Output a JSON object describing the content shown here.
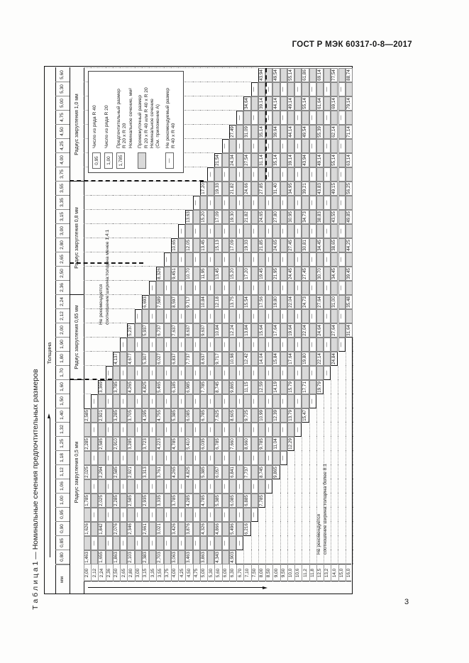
{
  "page": {
    "standard_header": "ГОСТ Р МЭК 60317-0-8—2017",
    "page_number": "3",
    "table_title": "Т а б л и ц а   1 — Номинальные сечения предпочтительных размеров"
  },
  "axes": {
    "thickness_label": "Толщина",
    "unit_label": "мм"
  },
  "thicknesses": [
    "0,80",
    "0,85",
    "0,90",
    "0,95",
    "1,00",
    "1,06",
    "1,12",
    "1,18",
    "1,25",
    "1,32",
    "1,40",
    "1,50",
    "1,60",
    "1,70",
    "1,80",
    "1,90",
    "2,00",
    "2,12",
    "2,24",
    "2,36",
    "2,50",
    "2,65",
    "2,80",
    "3,00",
    "3,15",
    "3,35",
    "3,55",
    "3,75",
    "4,00",
    "4,25",
    "4,50",
    "4,75",
    "5,00",
    "5,30",
    "5,60"
  ],
  "radius_groups": [
    {
      "label": "Радиус закругления 0,5 мм",
      "cols": 13
    },
    {
      "label": "Радиус закругления 0,65 мм",
      "cols": 6
    },
    {
      "label": "Радиус закругления 0,8 мм",
      "cols": 8
    },
    {
      "label": "Радиус закругления 1,0 мм",
      "cols": 8
    }
  ],
  "legend": [
    {
      "box": "0,95",
      "fill": "#ffffff",
      "text": [
        "Число из ряда R 40"
      ]
    },
    {
      "box": "1,00",
      "fill": "#ffffff",
      "text": [
        "Число из ряда R 20"
      ]
    },
    {
      "box": "1,785",
      "fill": "#ffffff",
      "text": [
        "Предпочтительный размер",
        "R 20 x R 20",
        "Номинальное сечение, мм²"
      ]
    },
    {
      "box": "",
      "fill": "#d9d9d9",
      "text": [
        "Промежуточный размер",
        "R 20 x R 40 или R 40 x R 20",
        "Номинальное сечение",
        "(См. приложение А)"
      ]
    },
    {
      "box": "—",
      "fill": "#ffffff",
      "text": [
        "Не рекомендуемый размер",
        "R 40 x R 40"
      ]
    }
  ],
  "zone_notes": {
    "upper": [
      "Не рекомендуется",
      "соотношение ширина:толщина менее 1,4:1"
    ],
    "lower": [
      "Не рекомендуется",
      "соотношение ширина:толщина более 8:1"
    ]
  },
  "colors": {
    "intermediate_fill": "#d9d9d9",
    "border": "#111111",
    "thin_border": "#8b8b8b"
  },
  "rows": [
    {
      "w": "2,00",
      "start": 0,
      "cells": [
        "1,463",
        "G",
        "1,626",
        "G",
        "1,785",
        "G",
        "2,025",
        "G",
        "2,285",
        "G",
        "2,585"
      ]
    },
    {
      "w": "2,12",
      "start": 0,
      "cells": [
        "G",
        "—",
        "G",
        "—",
        "G",
        "—",
        "G",
        "—",
        "G",
        "—",
        "G",
        "—"
      ]
    },
    {
      "w": "2,24",
      "start": 0,
      "cells": [
        "1,655",
        "G",
        "1,842",
        "G",
        "2,025",
        "G",
        "2,294",
        "G",
        "2,585",
        "G",
        "2,921",
        "G",
        "3,369"
      ]
    },
    {
      "w": "2,36",
      "start": 0,
      "cells": [
        "G",
        "—",
        "G",
        "—",
        "G",
        "—",
        "G",
        "—",
        "G",
        "—",
        "G",
        "—",
        "G",
        "—"
      ]
    },
    {
      "w": "2,50",
      "start": 0,
      "cells": [
        "1,863",
        "G",
        "2,076",
        "G",
        "2,285",
        "G",
        "2,585",
        "G",
        "2,910",
        "G",
        "3,285",
        "G",
        "3,785",
        "G",
        "4,137"
      ]
    },
    {
      "w": "2,65",
      "start": 0,
      "cells": [
        "G",
        "—",
        "G",
        "—",
        "G",
        "—",
        "G",
        "—",
        "G",
        "—",
        "G",
        "—",
        "G",
        "—",
        "G",
        "—"
      ]
    },
    {
      "w": "2,80",
      "start": 0,
      "cells": [
        "2,103",
        "G",
        "2,346",
        "G",
        "2,585",
        "G",
        "2,921",
        "G",
        "3,285",
        "G",
        "3,705",
        "G",
        "4,265",
        "G",
        "4,677",
        "G",
        "5,237"
      ]
    },
    {
      "w": "3,00",
      "start": 0,
      "cells": [
        "G",
        "—",
        "G",
        "—",
        "G",
        "—",
        "G",
        "—",
        "G",
        "—",
        "G",
        "—",
        "G",
        "—",
        "G",
        "—",
        "G",
        "—"
      ]
    },
    {
      "w": "3,15",
      "start": 0,
      "cells": [
        "2,383",
        "G",
        "2,661",
        "G",
        "2,935",
        "G",
        "3,313",
        "G",
        "3,723",
        "G",
        "4,195",
        "G",
        "4,825",
        "G",
        "5,307",
        "G",
        "5,937",
        "G",
        "6,693"
      ]
    },
    {
      "w": "3,35",
      "start": 0,
      "cells": [
        "G",
        "—",
        "G",
        "—",
        "G",
        "—",
        "G",
        "—",
        "G",
        "—",
        "G",
        "—",
        "G",
        "—",
        "G",
        "—",
        "G",
        "—",
        "G",
        "—"
      ]
    },
    {
      "w": "3,55",
      "start": 0,
      "cells": [
        "2,703",
        "G",
        "3,021",
        "G",
        "3,335",
        "G",
        "3,761",
        "G",
        "4,223",
        "G",
        "4,755",
        "G",
        "5,465",
        "G",
        "6,027",
        "G",
        "6,737",
        "G",
        "7,589",
        "G",
        "8,326"
      ]
    },
    {
      "w": "3,75",
      "start": 0,
      "cells": [
        "G",
        "—",
        "G",
        "—",
        "G",
        "—",
        "G",
        "—",
        "G",
        "—",
        "G",
        "—",
        "G",
        "—",
        "G",
        "—",
        "G",
        "—",
        "G",
        "—",
        "G",
        "—"
      ]
    },
    {
      "w": "4,00",
      "start": 0,
      "cells": [
        "3,063",
        "G",
        "3,426",
        "G",
        "3,785",
        "G",
        "4,265",
        "G",
        "4,785",
        "G",
        "5,385",
        "G",
        "6,185",
        "G",
        "6,837",
        "G",
        "7,637",
        "G",
        "8,597",
        "G",
        "9,451",
        "G",
        "10,65"
      ]
    },
    {
      "w": "4,25",
      "start": 0,
      "cells": [
        "G",
        "—",
        "G",
        "—",
        "G",
        "—",
        "G",
        "—",
        "G",
        "—",
        "G",
        "—",
        "G",
        "—",
        "G",
        "—",
        "G",
        "—",
        "G",
        "—",
        "G",
        "—",
        "G",
        "—"
      ]
    },
    {
      "w": "4,50",
      "start": 0,
      "cells": [
        "3,463",
        "G",
        "3,876",
        "G",
        "4,285",
        "G",
        "4,825",
        "G",
        "5,410",
        "G",
        "6,085",
        "G",
        "6,985",
        "G",
        "7,737",
        "G",
        "8,637",
        "G",
        "9,717",
        "G",
        "10,70",
        "G",
        "12,05",
        "G",
        "13,63"
      ]
    },
    {
      "w": "4,75",
      "start": 0,
      "cells": [
        "G",
        "—",
        "G",
        "—",
        "G",
        "—",
        "G",
        "—",
        "G",
        "—",
        "G",
        "—",
        "G",
        "—",
        "G",
        "—",
        "G",
        "—",
        "G",
        "—",
        "G",
        "—",
        "G",
        "—",
        "G",
        "—"
      ]
    },
    {
      "w": "5,00",
      "start": 0,
      "cells": [
        "3,863",
        "G",
        "4,326",
        "G",
        "4,785",
        "G",
        "5,385",
        "G",
        "6,035",
        "G",
        "6,785",
        "G",
        "7,785",
        "G",
        "8,637",
        "G",
        "9,637",
        "G",
        "10,84",
        "G",
        "11,95",
        "G",
        "13,45",
        "G",
        "15,20",
        "G",
        "17,20"
      ]
    },
    {
      "w": "5,30",
      "start": 0,
      "cells": [
        "G",
        "—",
        "G",
        "—",
        "G",
        "—",
        "G",
        "—",
        "G",
        "—",
        "G",
        "—",
        "G",
        "—",
        "G",
        "—",
        "G",
        "—",
        "G",
        "—",
        "G",
        "—",
        "G",
        "—",
        "G",
        "—",
        "G",
        "—"
      ]
    },
    {
      "w": "5,60",
      "start": 0,
      "cells": [
        "4,343",
        "G",
        "4,866",
        "G",
        "5,385",
        "G",
        "6,057",
        "G",
        "6,785",
        "G",
        "7,625",
        "G",
        "8,745",
        "G",
        "9,717",
        "G",
        "10,84",
        "G",
        "12,18",
        "G",
        "13,45",
        "G",
        "15,13",
        "G",
        "17,09",
        "G",
        "19,33",
        "G",
        "21,54"
      ]
    },
    {
      "w": "6,00",
      "start": 0,
      "cells": [
        "G",
        "—",
        "G",
        "—",
        "G",
        "—",
        "G",
        "—",
        "G",
        "—",
        "G",
        "—",
        "G",
        "—",
        "G",
        "—",
        "G",
        "—",
        "G",
        "—",
        "G",
        "—",
        "G",
        "—",
        "G",
        "—",
        "G",
        "—",
        "G",
        "—"
      ]
    },
    {
      "w": "6,30",
      "start": 0,
      "cells": [
        "4,903",
        "G",
        "5,496",
        "G",
        "6,085",
        "G",
        "6,841",
        "G",
        "7,660",
        "G",
        "8,605",
        "G",
        "9,865",
        "G",
        "10,98",
        "G",
        "12,24",
        "G",
        "13,75",
        "G",
        "15,20",
        "G",
        "17,09",
        "G",
        "19,30",
        "G",
        "21,82",
        "G",
        "24,34",
        "G",
        "27,49"
      ]
    },
    {
      "w": "6,70",
      "start": 1,
      "cells": [
        "—",
        "G",
        "—",
        "G",
        "—",
        "G",
        "—",
        "G",
        "—",
        "G",
        "—",
        "G",
        "—",
        "G",
        "—",
        "G",
        "—",
        "G",
        "—",
        "G",
        "—",
        "G",
        "—",
        "G",
        "—",
        "G",
        "—",
        "G",
        "—",
        "G",
        "—"
      ]
    },
    {
      "w": "7,10",
      "start": 2,
      "cells": [
        "6,216",
        "G",
        "6,885",
        "G",
        "7,737",
        "G",
        "8,660",
        "G",
        "9,725",
        "G",
        "11,15",
        "G",
        "12,42",
        "G",
        "13,84",
        "G",
        "15,54",
        "G",
        "17,20",
        "G",
        "19,33",
        "G",
        "21,82",
        "G",
        "24,66",
        "G",
        "27,54",
        "G",
        "31,09",
        "G",
        "34,64"
      ]
    },
    {
      "w": "7,50",
      "start": 3,
      "cells": [
        "—",
        "G",
        "—",
        "G",
        "—",
        "G",
        "—",
        "G",
        "—",
        "G",
        "—",
        "G",
        "—",
        "G",
        "—",
        "G",
        "—",
        "G",
        "—",
        "G",
        "—",
        "G",
        "—",
        "G",
        "—",
        "G",
        "—",
        "G",
        "—",
        "G",
        "—"
      ]
    },
    {
      "w": "8,00",
      "start": 4,
      "cells": [
        "7,785",
        "G",
        "8,745",
        "G",
        "9,785",
        "G",
        "10,99",
        "G",
        "12,59",
        "G",
        "14,04",
        "G",
        "15,64",
        "G",
        "17,56",
        "G",
        "19,45",
        "G",
        "21,85",
        "G",
        "24,65",
        "G",
        "27,85",
        "G",
        "31,14",
        "G",
        "35,14",
        "G",
        "39,14",
        "G",
        "43,94"
      ]
    },
    {
      "w": "8,50",
      "start": 5,
      "cells": [
        "—",
        "G",
        "—",
        "G",
        "—",
        "G",
        "—",
        "G",
        "—",
        "G",
        "—",
        "G",
        "—",
        "G",
        "—",
        "G",
        "—",
        "G",
        "—",
        "G",
        "—",
        "G",
        "—",
        "G",
        "—",
        "G",
        "—",
        "G",
        "—",
        "G"
      ]
    },
    {
      "w": "9,00",
      "start": 6,
      "cells": [
        "9,865",
        "G",
        "11,04",
        "G",
        "12,39",
        "G",
        "14,19",
        "G",
        "15,84",
        "G",
        "17,64",
        "G",
        "19,80",
        "G",
        "21,95",
        "G",
        "24,65",
        "G",
        "27,80",
        "G",
        "31,40",
        "G",
        "35,14",
        "G",
        "39,64",
        "G",
        "44,14",
        "G",
        "49,54"
      ]
    },
    {
      "w": "9,50",
      "start": 7,
      "cells": [
        "—",
        "G",
        "—",
        "G",
        "—",
        "G",
        "—",
        "G",
        "—",
        "G",
        "—",
        "G",
        "—",
        "G",
        "—",
        "G",
        "—",
        "G",
        "—",
        "G",
        "—",
        "G",
        "—",
        "G",
        "—",
        "G",
        "—",
        "G"
      ]
    },
    {
      "w": "10,0",
      "start": 8,
      "cells": [
        "12,29",
        "G",
        "13,79",
        "G",
        "15,79",
        "G",
        "17,64",
        "G",
        "19,64",
        "G",
        "22,04",
        "G",
        "24,45",
        "G",
        "27,45",
        "G",
        "30,95",
        "G",
        "34,95",
        "G",
        "39,14",
        "G",
        "44,14",
        "G",
        "49,14",
        "G",
        "55,14"
      ]
    },
    {
      "w": "10,6",
      "start": 9,
      "cells": [
        "—",
        "G",
        "—",
        "G",
        "—",
        "G",
        "—",
        "G",
        "—",
        "G",
        "—",
        "G",
        "—",
        "G",
        "—",
        "G",
        "—",
        "G",
        "—",
        "G",
        "—",
        "G",
        "—",
        "G",
        "—",
        "G"
      ]
    },
    {
      "w": "11,2",
      "start": 10,
      "cells": [
        "15,47",
        "G",
        "17,71",
        "G",
        "19,80",
        "G",
        "22,04",
        "G",
        "24,73",
        "G",
        "27,45",
        "G",
        "30,81",
        "G",
        "34,73",
        "G",
        "39,21",
        "G",
        "43,94",
        "G",
        "49,54",
        "G",
        "55,14",
        "G",
        "61,86"
      ]
    },
    {
      "w": "11,8",
      "start": 11,
      "cells": [
        "—",
        "G",
        "—",
        "G",
        "—",
        "G",
        "—",
        "G",
        "—",
        "G",
        "—",
        "G",
        "—",
        "G",
        "—",
        "G",
        "—",
        "G",
        "—",
        "G",
        "—",
        "G",
        "—",
        "G"
      ]
    },
    {
      "w": "12,5",
      "start": 12,
      "cells": [
        "19,79",
        "G",
        "22,14",
        "G",
        "24,64",
        "G",
        "27,64",
        "G",
        "30,70",
        "G",
        "34,45",
        "G",
        "38,83",
        "G",
        "43,83",
        "G",
        "49,14",
        "G",
        "55,39",
        "G",
        "61,64",
        "G",
        "69,14"
      ]
    },
    {
      "w": "13,2",
      "start": 13,
      "cells": [
        "—",
        "G",
        "—",
        "G",
        "—",
        "G",
        "—",
        "G",
        "—",
        "G",
        "—",
        "G",
        "—",
        "G",
        "—",
        "G",
        "—",
        "G",
        "—",
        "G",
        "—",
        "G"
      ]
    },
    {
      "w": "14,0",
      "start": 14,
      "cells": [
        "24,84",
        "G",
        "27,64",
        "G",
        "31,00",
        "G",
        "34,45",
        "G",
        "38,65",
        "G",
        "43,55",
        "G",
        "49,15",
        "G",
        "55,14",
        "G",
        "62,14",
        "G",
        "69,14",
        "G",
        "77,54"
      ]
    },
    {
      "w": "15,0",
      "start": 15,
      "cells": [
        "—",
        "G",
        "—",
        "G",
        "—",
        "G",
        "—",
        "G",
        "—",
        "G",
        "—",
        "G",
        "—",
        "G",
        "—",
        "G",
        "—",
        "G",
        "—",
        "G"
      ]
    },
    {
      "w": "16,0",
      "start": 16,
      "cells": [
        "31,64",
        "G",
        "35,48",
        "G",
        "39,45",
        "G",
        "44,25",
        "G",
        "49,85",
        "G",
        "56,25",
        "G",
        "63,14",
        "G",
        "71,14",
        "G",
        "79,14",
        "G",
        "88,74"
      ]
    }
  ]
}
